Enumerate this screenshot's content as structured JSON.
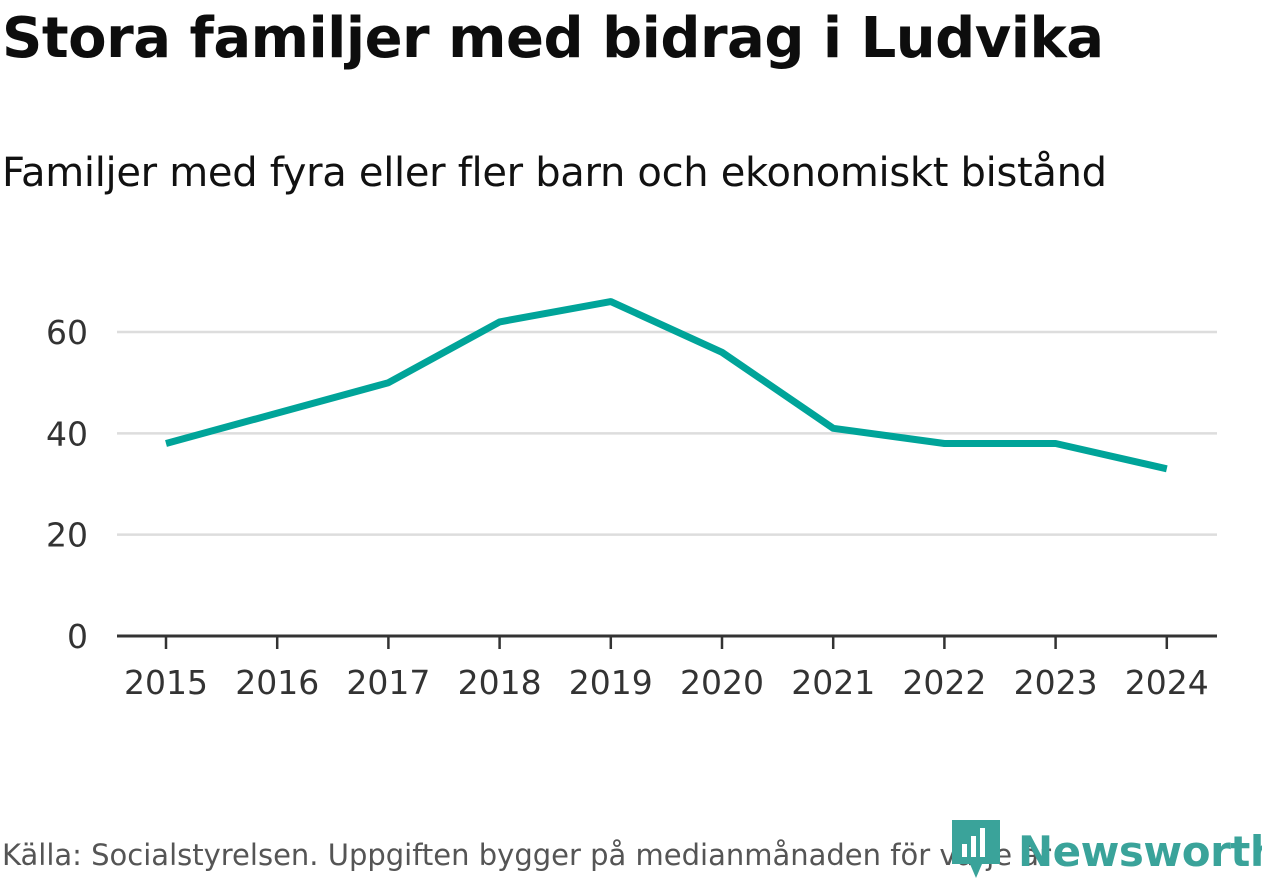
{
  "header": {
    "title": "Stora familjer med bidrag i Ludvika",
    "subtitle": "Familjer med fyra eller fler barn och ekonomiskt bistånd"
  },
  "footer": {
    "source": "Källa: Socialstyrelsen. Uppgiften bygger på medianmånaden för varje år",
    "brand": "Newsworthy",
    "brand_icon": "newsworthy-logo-icon"
  },
  "colors": {
    "line": "#00a499",
    "grid": "#dddddd",
    "axis": "#333333",
    "brand": "#3aa39a"
  },
  "chart_data": {
    "type": "line",
    "title": "Stora familjer med bidrag i Ludvika",
    "subtitle": "Familjer med fyra eller fler barn och ekonomiskt bistånd",
    "xlabel": "",
    "ylabel": "",
    "x": [
      "2015",
      "2016",
      "2017",
      "2018",
      "2019",
      "2020",
      "2021",
      "2022",
      "2023",
      "2024"
    ],
    "series": [
      {
        "values": [
          38,
          44,
          50,
          62,
          66,
          56,
          41,
          38,
          38,
          33
        ]
      }
    ],
    "yticks": [
      "0",
      "20",
      "40",
      "60"
    ],
    "ylim": [
      0,
      70
    ],
    "grid": true,
    "legend": "none"
  }
}
